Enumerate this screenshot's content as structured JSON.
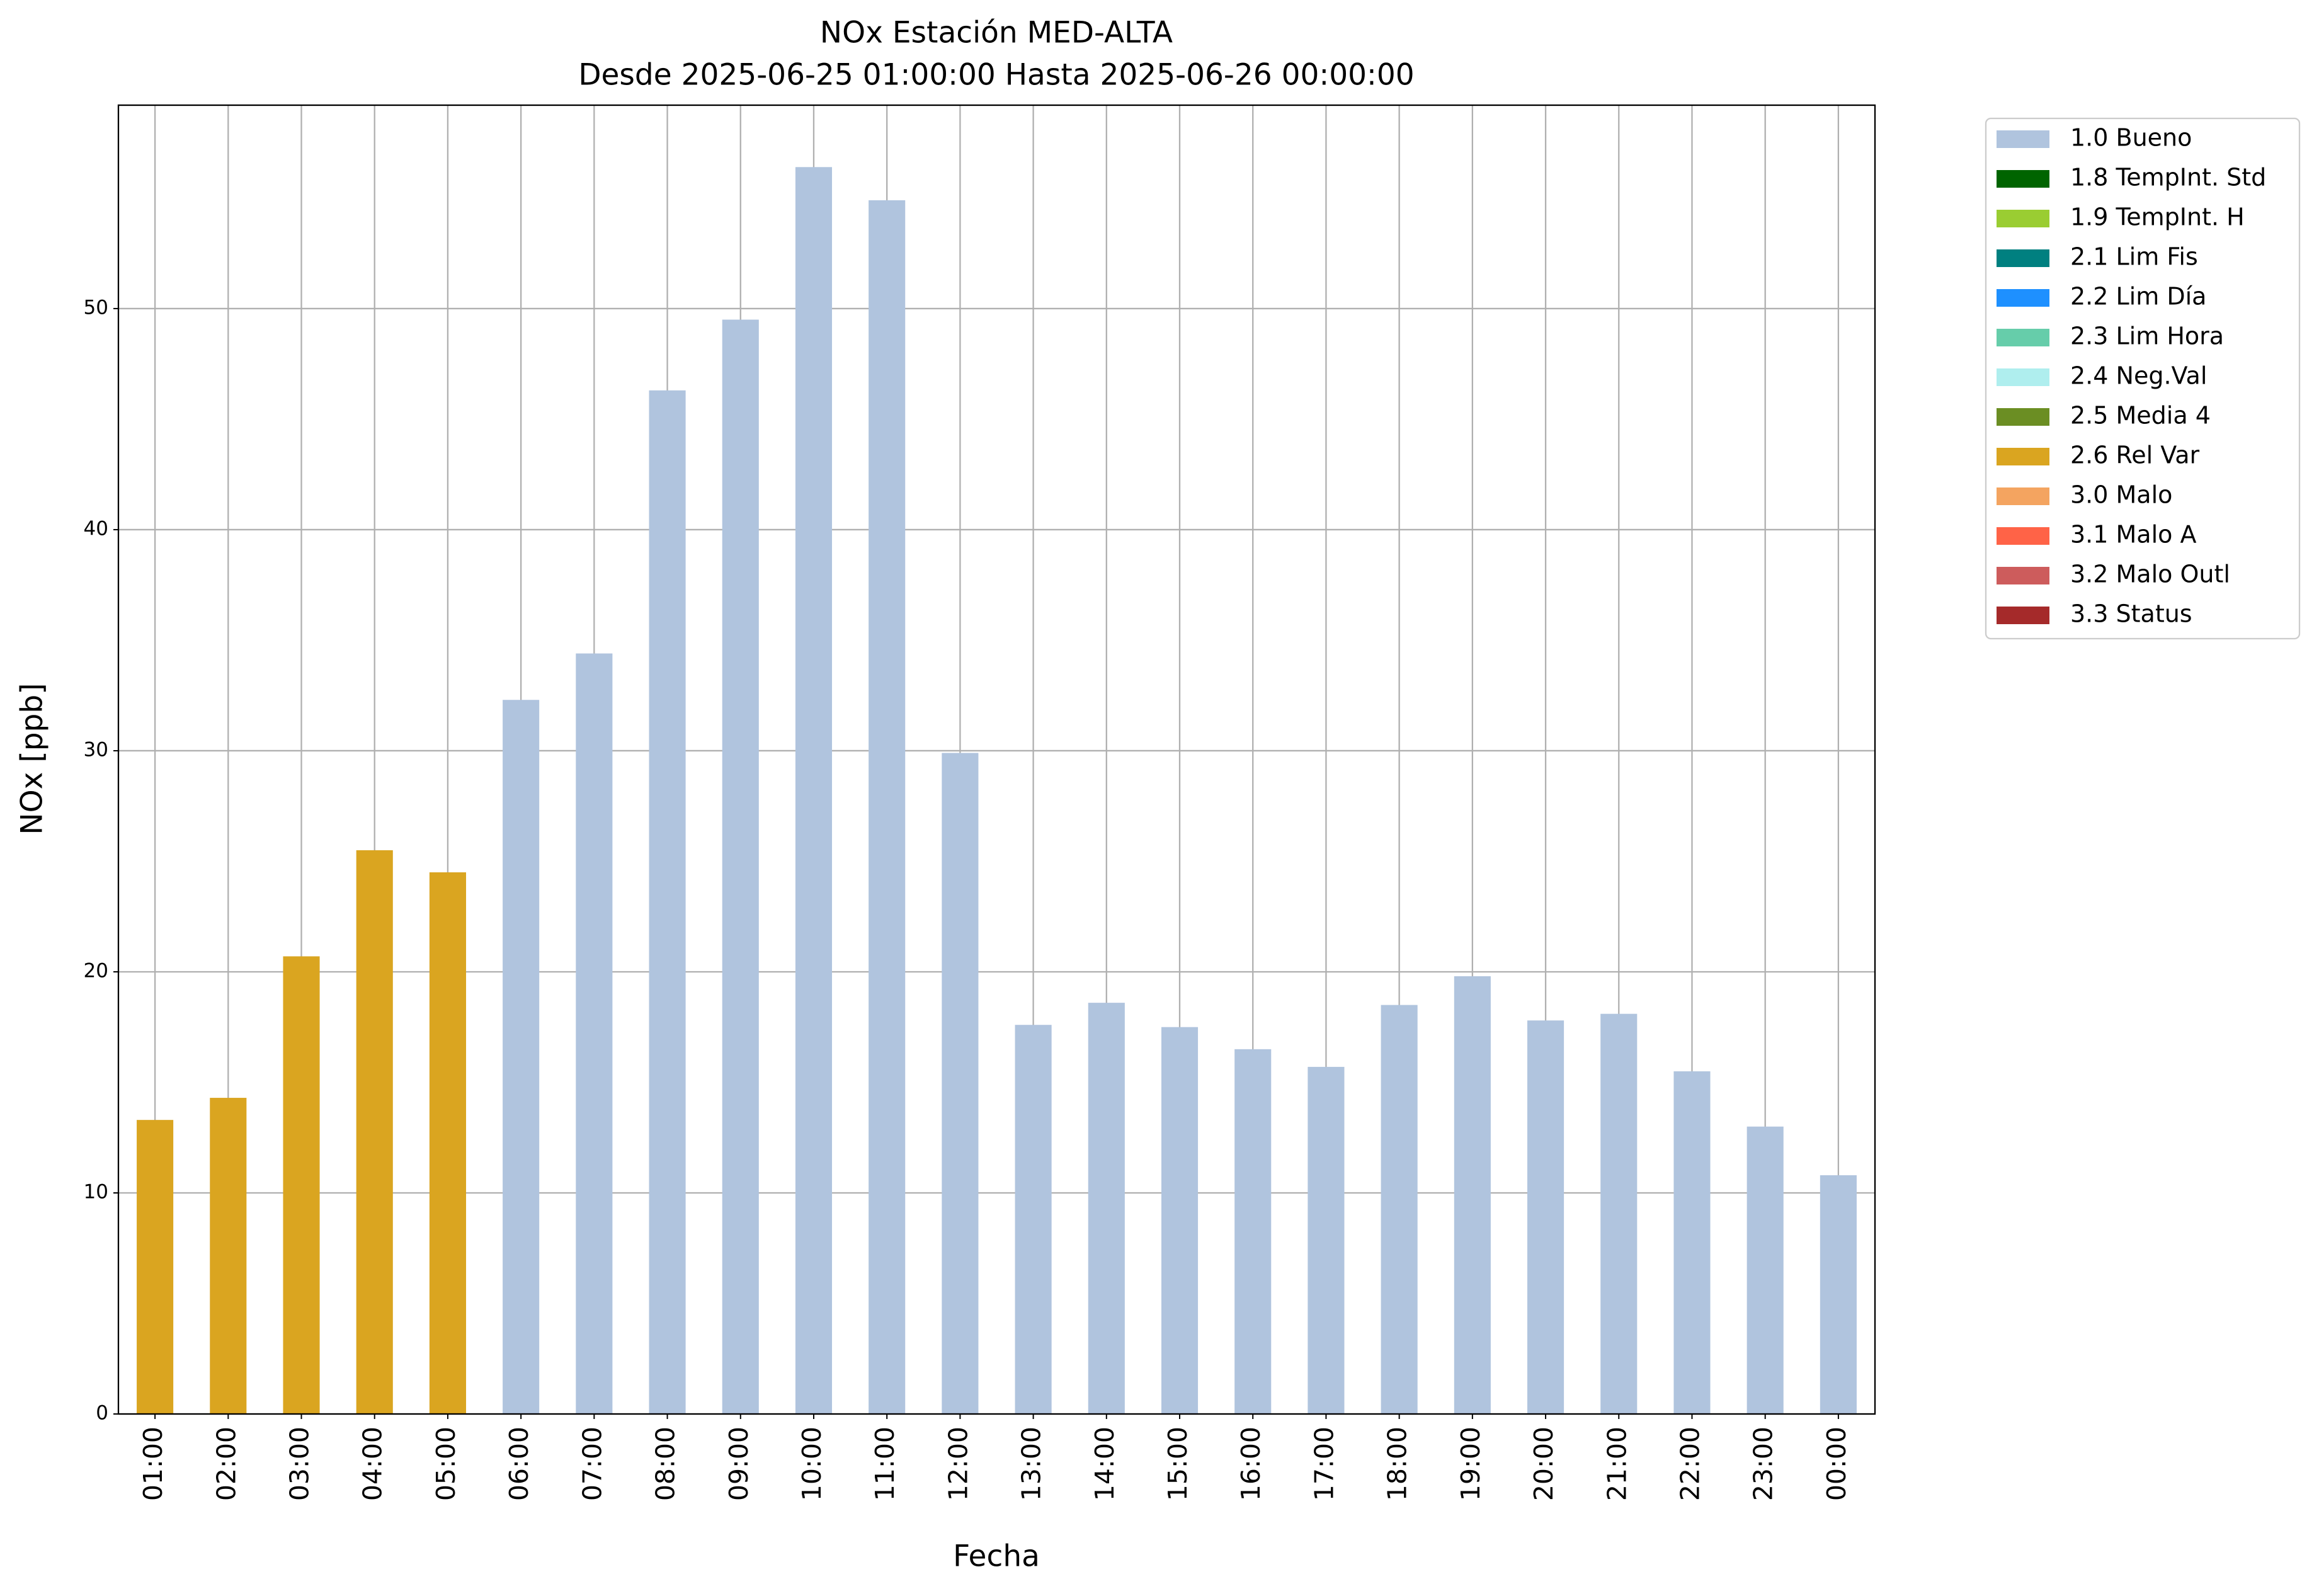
{
  "chart_data": {
    "type": "bar",
    "stacked": true,
    "title": "NOx Estación MED-ALTA",
    "subtitle": "Desde 2025-06-25 01:00:00 Hasta 2025-06-26 00:00:00",
    "x_label": "Fecha",
    "y_label": "NOx [ppb]",
    "categories": [
      "01:00",
      "02:00",
      "03:00",
      "04:00",
      "05:00",
      "06:00",
      "07:00",
      "08:00",
      "09:00",
      "10:00",
      "11:00",
      "12:00",
      "13:00",
      "14:00",
      "15:00",
      "16:00",
      "17:00",
      "18:00",
      "19:00",
      "20:00",
      "21:00",
      "22:00",
      "23:00",
      "00:00"
    ],
    "ylim": [
      0,
      59.2
    ],
    "yticks": [
      0,
      10,
      20,
      30,
      40,
      50
    ],
    "grid": true,
    "legend": "outside right",
    "series": [
      {
        "name": "1.0 Bueno",
        "color": "#b0c4de",
        "values": [
          null,
          null,
          null,
          null,
          null,
          32.3,
          34.4,
          46.3,
          49.5,
          56.4,
          54.9,
          29.9,
          17.6,
          18.6,
          17.5,
          16.5,
          15.7,
          18.5,
          19.8,
          17.8,
          18.1,
          15.5,
          13.0,
          10.8
        ]
      },
      {
        "name": "1.8 TempInt. Std",
        "color": "#006400",
        "values": [
          null,
          null,
          null,
          null,
          null,
          null,
          null,
          null,
          null,
          null,
          null,
          null,
          null,
          null,
          null,
          null,
          null,
          null,
          null,
          null,
          null,
          null,
          null,
          null
        ]
      },
      {
        "name": "1.9 TempInt. H",
        "color": "#9acd32",
        "values": [
          null,
          null,
          null,
          null,
          null,
          null,
          null,
          null,
          null,
          null,
          null,
          null,
          null,
          null,
          null,
          null,
          null,
          null,
          null,
          null,
          null,
          null,
          null,
          null
        ]
      },
      {
        "name": "2.1 Lim Fis",
        "color": "#008080",
        "values": [
          null,
          null,
          null,
          null,
          null,
          null,
          null,
          null,
          null,
          null,
          null,
          null,
          null,
          null,
          null,
          null,
          null,
          null,
          null,
          null,
          null,
          null,
          null,
          null
        ]
      },
      {
        "name": "2.2 Lim Día",
        "color": "#1e90ff",
        "values": [
          null,
          null,
          null,
          null,
          null,
          null,
          null,
          null,
          null,
          null,
          null,
          null,
          null,
          null,
          null,
          null,
          null,
          null,
          null,
          null,
          null,
          null,
          null,
          null
        ]
      },
      {
        "name": "2.3 Lim Hora",
        "color": "#66cdaa",
        "values": [
          null,
          null,
          null,
          null,
          null,
          null,
          null,
          null,
          null,
          null,
          null,
          null,
          null,
          null,
          null,
          null,
          null,
          null,
          null,
          null,
          null,
          null,
          null,
          null
        ]
      },
      {
        "name": "2.4 Neg.Val",
        "color": "#afeeee",
        "values": [
          null,
          null,
          null,
          null,
          null,
          null,
          null,
          null,
          null,
          null,
          null,
          null,
          null,
          null,
          null,
          null,
          null,
          null,
          null,
          null,
          null,
          null,
          null,
          null
        ]
      },
      {
        "name": "2.5 Media 4",
        "color": "#6b8e23",
        "values": [
          null,
          null,
          null,
          null,
          null,
          null,
          null,
          null,
          null,
          null,
          null,
          null,
          null,
          null,
          null,
          null,
          null,
          null,
          null,
          null,
          null,
          null,
          null,
          null
        ]
      },
      {
        "name": "2.6 Rel Var",
        "color": "#daa520",
        "values": [
          13.3,
          14.3,
          20.7,
          25.5,
          24.5,
          null,
          null,
          null,
          null,
          null,
          null,
          null,
          null,
          null,
          null,
          null,
          null,
          null,
          null,
          null,
          null,
          null,
          null,
          null
        ]
      },
      {
        "name": "3.0 Malo",
        "color": "#f4a460",
        "values": [
          null,
          null,
          null,
          null,
          null,
          null,
          null,
          null,
          null,
          null,
          null,
          null,
          null,
          null,
          null,
          null,
          null,
          null,
          null,
          null,
          null,
          null,
          null,
          null
        ]
      },
      {
        "name": "3.1 Malo A",
        "color": "#ff6347",
        "values": [
          null,
          null,
          null,
          null,
          null,
          null,
          null,
          null,
          null,
          null,
          null,
          null,
          null,
          null,
          null,
          null,
          null,
          null,
          null,
          null,
          null,
          null,
          null,
          null
        ]
      },
      {
        "name": "3.2 Malo Outl",
        "color": "#cd5c5c",
        "values": [
          null,
          null,
          null,
          null,
          null,
          null,
          null,
          null,
          null,
          null,
          null,
          null,
          null,
          null,
          null,
          null,
          null,
          null,
          null,
          null,
          null,
          null,
          null,
          null
        ]
      },
      {
        "name": "3.3 Status",
        "color": "#a52a2a",
        "values": [
          null,
          null,
          null,
          null,
          null,
          null,
          null,
          null,
          null,
          null,
          null,
          null,
          null,
          null,
          null,
          null,
          null,
          null,
          null,
          null,
          null,
          null,
          null,
          null
        ]
      }
    ]
  }
}
